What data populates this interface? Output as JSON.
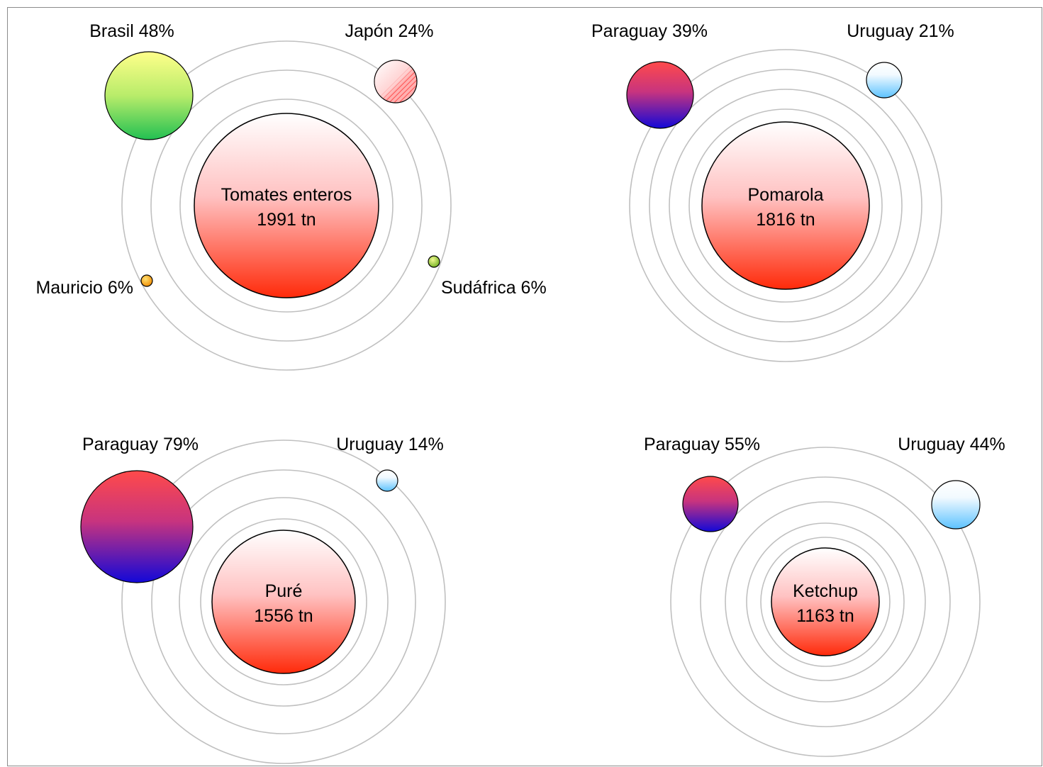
{
  "colors": {
    "ring": "#c0c0c0",
    "center_top": "#ffffff",
    "center_bottom": "#ff3010",
    "outline": "#000000"
  },
  "chart_data": [
    {
      "type": "bubble",
      "center": {
        "label": "Tomates enteros",
        "value": 1991,
        "unit": "tn",
        "value_label": "1991 tn"
      },
      "destinations": [
        {
          "name": "Brasil",
          "percent": 48,
          "label": "Brasil 48%",
          "fill": "yellow-green"
        },
        {
          "name": "Japón",
          "percent": 24,
          "label": "Japón 24%",
          "fill": "pink-hatched"
        },
        {
          "name": "Mauricio",
          "percent": 6,
          "label": "Mauricio 6%",
          "fill": "orange"
        },
        {
          "name": "Sudáfrica",
          "percent": 6,
          "label": "Sudáfrica 6%",
          "fill": "olive-green"
        }
      ]
    },
    {
      "type": "bubble",
      "center": {
        "label": "Pomarola",
        "value": 1816,
        "unit": "tn",
        "value_label": "1816 tn"
      },
      "destinations": [
        {
          "name": "Paraguay",
          "percent": 39,
          "label": "Paraguay 39%",
          "fill": "red-blue"
        },
        {
          "name": "Uruguay",
          "percent": 21,
          "label": "Uruguay 21%",
          "fill": "sky-blue"
        }
      ]
    },
    {
      "type": "bubble",
      "center": {
        "label": "Puré",
        "value": 1556,
        "unit": "tn",
        "value_label": "1556 tn"
      },
      "destinations": [
        {
          "name": "Paraguay",
          "percent": 79,
          "label": "Paraguay 79%",
          "fill": "red-blue"
        },
        {
          "name": "Uruguay",
          "percent": 14,
          "label": "Uruguay 14%",
          "fill": "sky-blue"
        }
      ]
    },
    {
      "type": "bubble",
      "center": {
        "label": "Ketchup",
        "value": 1163,
        "unit": "tn",
        "value_label": "1163 tn"
      },
      "destinations": [
        {
          "name": "Paraguay",
          "percent": 55,
          "label": "Paraguay 55%",
          "fill": "red-blue"
        },
        {
          "name": "Uruguay",
          "percent": 44,
          "label": "Uruguay 44%",
          "fill": "sky-blue"
        }
      ]
    }
  ]
}
